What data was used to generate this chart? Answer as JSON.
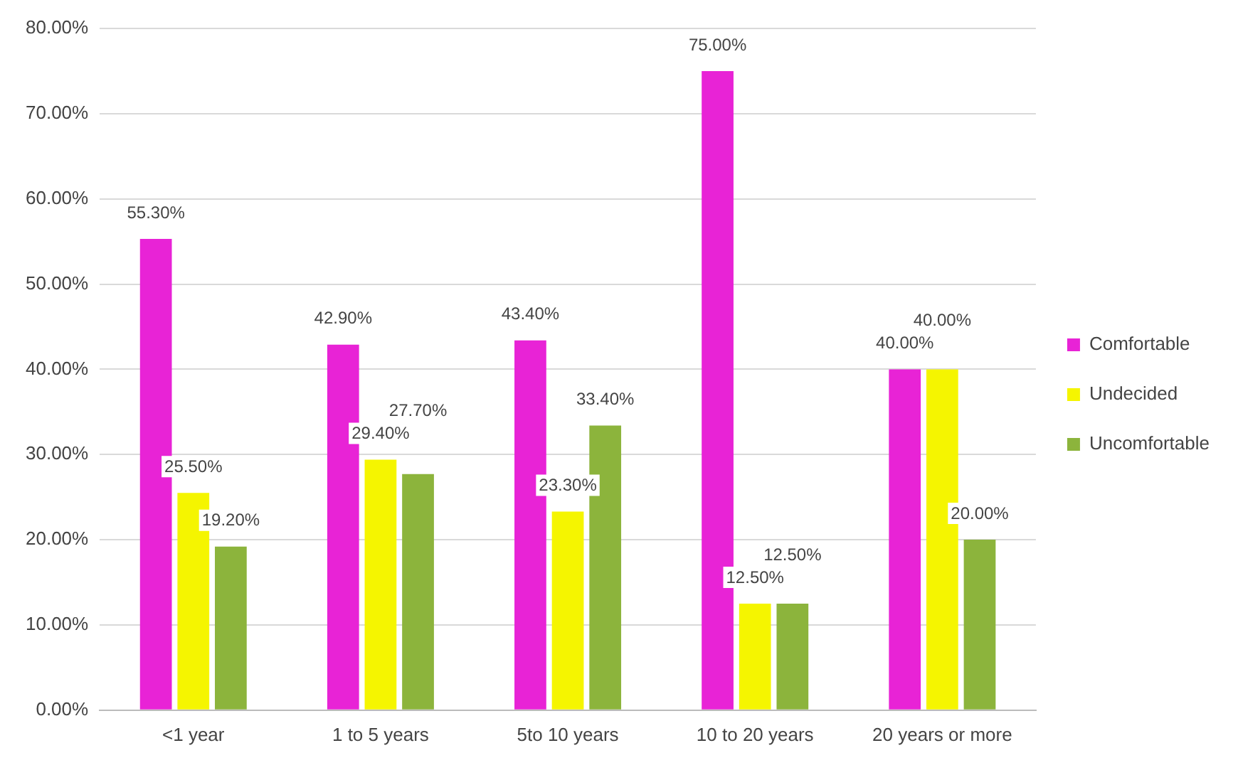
{
  "chart_data": {
    "type": "bar",
    "categories": [
      "<1 year",
      "1 to 5 years",
      "5to 10 years",
      "10 to 20 years",
      "20 years or more"
    ],
    "series": [
      {
        "name": "Comfortable",
        "color": "#e823d6",
        "values": [
          55.3,
          42.9,
          43.4,
          75.0,
          40.0
        ],
        "value_labels": [
          "55.30%",
          "42.90%",
          "43.40%",
          "75.00%",
          "40.00%"
        ]
      },
      {
        "name": "Undecided",
        "color": "#f5f500",
        "values": [
          25.5,
          29.4,
          23.3,
          12.5,
          40.0
        ],
        "value_labels": [
          "25.50%",
          "29.40%",
          "23.30%",
          "12.50%",
          "40.00%"
        ]
      },
      {
        "name": "Uncomfortable",
        "color": "#8cb43c",
        "values": [
          19.2,
          27.7,
          33.4,
          12.5,
          20.0
        ],
        "value_labels": [
          "19.20%",
          "27.70%",
          "33.40%",
          "12.50%",
          "20.00%"
        ]
      }
    ],
    "ylim": [
      0,
      80
    ],
    "yticks": [
      {
        "value": 0,
        "label": "0.00%"
      },
      {
        "value": 10,
        "label": "10.00%"
      },
      {
        "value": 20,
        "label": "20.00%"
      },
      {
        "value": 30,
        "label": "30.00%"
      },
      {
        "value": 40,
        "label": "40.00%"
      },
      {
        "value": 50,
        "label": "50.00%"
      },
      {
        "value": 60,
        "label": "60.00%"
      },
      {
        "value": 70,
        "label": "70.00%"
      },
      {
        "value": 80,
        "label": "80.00%"
      }
    ],
    "grid": "y",
    "legend": "right"
  }
}
